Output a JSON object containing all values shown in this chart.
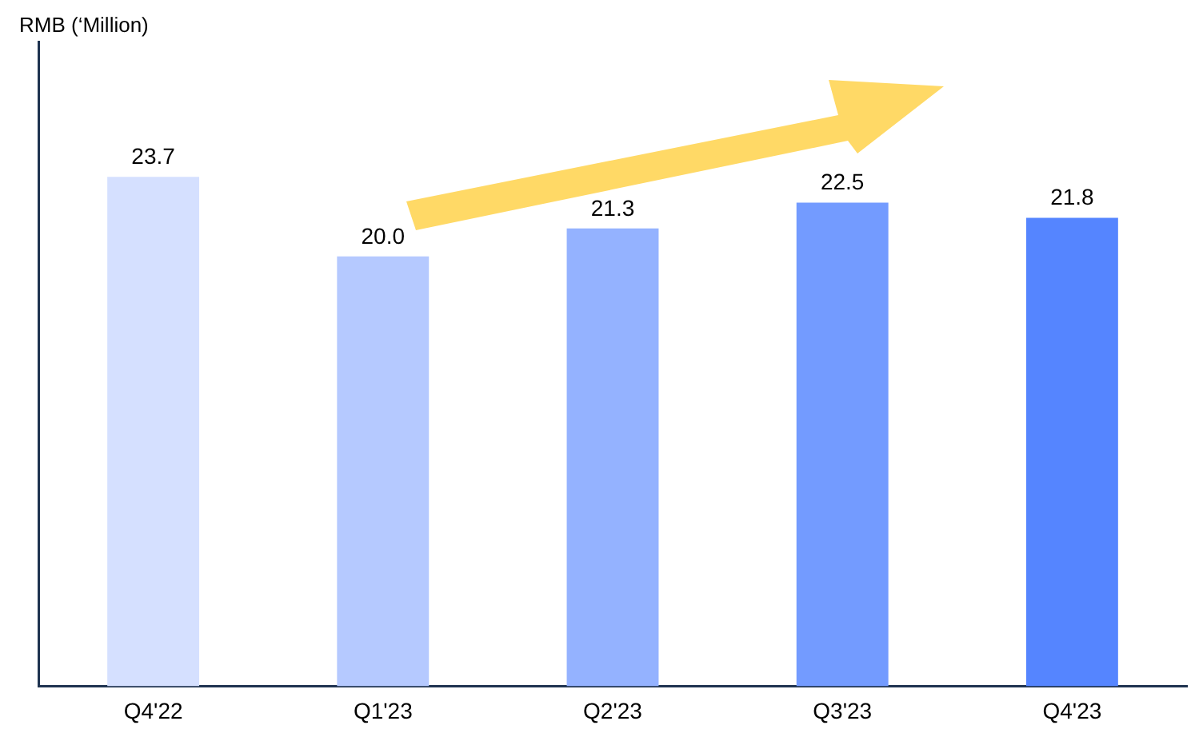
{
  "chart_data": {
    "type": "bar",
    "annotations": [
      "RMB (‘Million)"
    ],
    "categories": [
      "Q4'22",
      "Q1'23",
      "Q2'23",
      "Q3'23",
      "Q4'23"
    ],
    "values": [
      23.7,
      20.0,
      21.3,
      22.5,
      21.8
    ],
    "colors": [
      "#d5e0ff",
      "#b5c9ff",
      "#94b2ff",
      "#739bff",
      "#5585ff"
    ],
    "value_labels": [
      "23.7",
      "20.0",
      "21.3",
      "22.5",
      "21.8"
    ],
    "tick_labels": "x",
    "grid": false,
    "legend": false
  }
}
